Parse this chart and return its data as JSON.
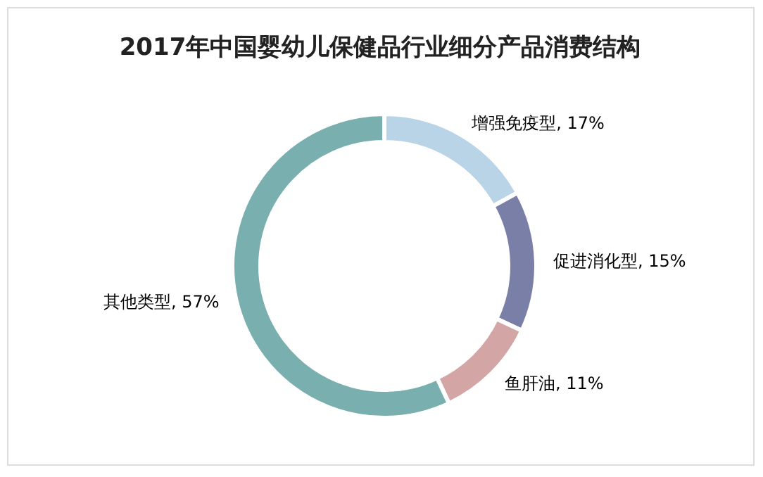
{
  "chart_data": {
    "type": "donut",
    "title": "2017年中国婴幼儿保健品行业细分产品消费结构",
    "categories": [
      "增强免疫型",
      "促进消化型",
      "鱼肝油",
      "其他类型"
    ],
    "values": [
      17,
      15,
      11,
      57
    ],
    "value_labels": [
      "17%",
      "15%",
      "11%",
      "57%"
    ],
    "colors": [
      "#b8d4e6",
      "#7a7fa8",
      "#d4a5a5",
      "#7aafaf"
    ],
    "data_labels": true,
    "legend": false
  }
}
